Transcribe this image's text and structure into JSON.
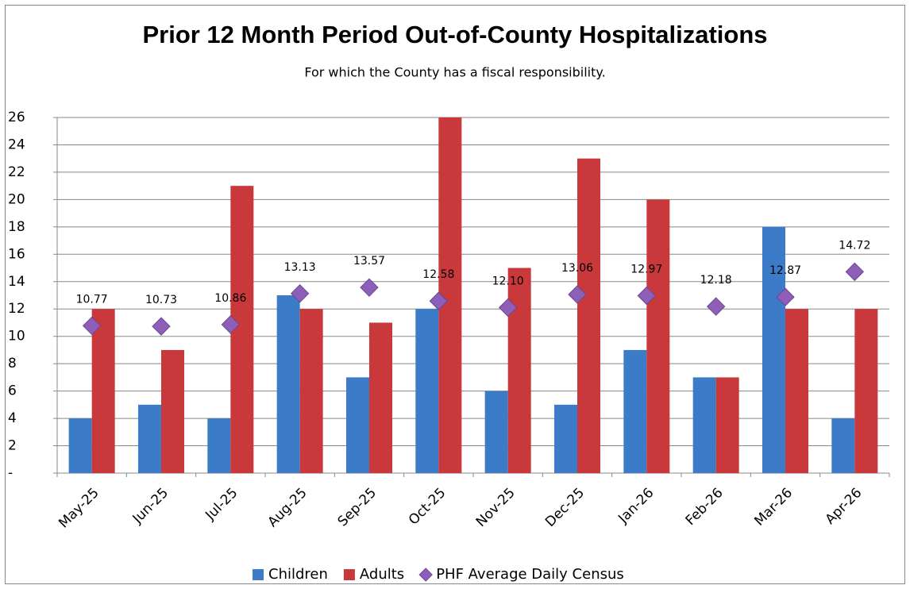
{
  "chart_data": {
    "type": "bar",
    "title": "Prior 12 Month Period Out-of-County Hospitalizations",
    "subtitle": "For which the County has a fiscal responsibility.",
    "categories": [
      "May-25",
      "Jun-25",
      "Jul-25",
      "Aug-25",
      "Sep-25",
      "Oct-25",
      "Nov-25",
      "Dec-25",
      "Jan-26",
      "Feb-26",
      "Mar-26",
      "Apr-26"
    ],
    "series": [
      {
        "name": "Children",
        "color": "#3b7bc8",
        "type": "bar",
        "values": [
          4,
          5,
          4,
          13,
          7,
          12,
          6,
          5,
          9,
          7,
          18,
          4
        ]
      },
      {
        "name": "Adults",
        "color": "#c9393b",
        "type": "bar",
        "values": [
          12,
          9,
          21,
          12,
          11,
          26,
          15,
          23,
          20,
          7,
          12,
          12
        ]
      },
      {
        "name": "PHF Average Daily Census",
        "color": "#8e5fb8",
        "type": "marker",
        "values": [
          10.77,
          10.73,
          10.86,
          13.13,
          13.57,
          12.58,
          12.1,
          13.06,
          12.97,
          12.18,
          12.87,
          14.72
        ],
        "value_labels": [
          "10.77",
          "10.73",
          "10.86",
          "13.13",
          "13.57",
          "12.58",
          "12.10",
          "13.06",
          "12.97",
          "12.18",
          "12.87",
          "14.72"
        ]
      }
    ],
    "ylim": [
      0,
      26
    ],
    "yticks": [
      {
        "value": 0,
        "label": "-"
      },
      2,
      4,
      6,
      8,
      10,
      12,
      14,
      16,
      18,
      20,
      22,
      24,
      26
    ],
    "grid": true,
    "legend": "bottom"
  }
}
